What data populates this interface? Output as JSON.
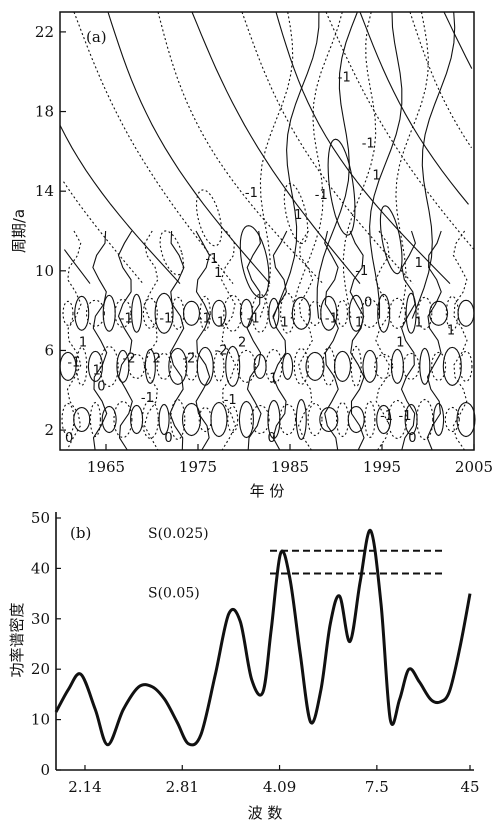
{
  "chart_data": [
    {
      "type": "contour",
      "panel_label": "(a)",
      "xlabel": "年 份",
      "ylabel": "周期/a",
      "xlim": [
        1960,
        2005
      ],
      "ylim": [
        1,
        23
      ],
      "x_ticks": [
        1965,
        1975,
        1985,
        1995,
        2005
      ],
      "y_ticks": [
        2,
        6,
        10,
        14,
        18,
        22
      ],
      "contour_labels": [
        {
          "text": "-1",
          "x": 1976.5,
          "y": 10.6
        },
        {
          "text": "1",
          "x": 1977.2,
          "y": 9.9
        },
        {
          "text": "1",
          "x": 1985.9,
          "y": 12.8
        },
        {
          "text": "-1",
          "x": 1980.8,
          "y": 13.9
        },
        {
          "text": "-1",
          "x": 1988.4,
          "y": 13.8
        },
        {
          "text": "-1",
          "x": 1990.9,
          "y": 19.7
        },
        {
          "text": "-1",
          "x": 1993.5,
          "y": 16.4
        },
        {
          "text": "1",
          "x": 1994.4,
          "y": 14.8
        },
        {
          "text": "-1",
          "x": 1992.8,
          "y": 10.0
        },
        {
          "text": "1",
          "x": 1999.0,
          "y": 10.4
        },
        {
          "text": "-1",
          "x": 1967.2,
          "y": 7.6
        },
        {
          "text": "-1",
          "x": 1971.5,
          "y": 7.6
        },
        {
          "text": "-1",
          "x": 1975.7,
          "y": 7.6
        },
        {
          "text": "1",
          "x": 1977.5,
          "y": 7.4
        },
        {
          "text": "-1",
          "x": 1981.0,
          "y": 7.6
        },
        {
          "text": "1",
          "x": 1984.4,
          "y": 7.4
        },
        {
          "text": "-1",
          "x": 1989.5,
          "y": 7.6
        },
        {
          "text": "1",
          "x": 1992.5,
          "y": 7.4
        },
        {
          "text": "1",
          "x": 1999.0,
          "y": 7.4
        },
        {
          "text": "1",
          "x": 2002.5,
          "y": 7.0
        },
        {
          "text": "1",
          "x": 1962.5,
          "y": 6.4
        },
        {
          "text": "-2",
          "x": 1967.5,
          "y": 5.6
        },
        {
          "text": "2",
          "x": 1970.5,
          "y": 5.6
        },
        {
          "text": "-2",
          "x": 1974.0,
          "y": 5.6
        },
        {
          "text": "-2",
          "x": 1977.5,
          "y": 6.0
        },
        {
          "text": "2",
          "x": 1979.8,
          "y": 6.4
        },
        {
          "text": "1",
          "x": 1997.0,
          "y": 6.4
        },
        {
          "text": "-1",
          "x": 1961.5,
          "y": 5.4
        },
        {
          "text": "1",
          "x": 1964.0,
          "y": 5.0
        },
        {
          "text": "0",
          "x": 1964.5,
          "y": 4.2
        },
        {
          "text": "0",
          "x": 1993.5,
          "y": 8.4
        },
        {
          "text": "-1",
          "x": 1969.5,
          "y": 3.6
        },
        {
          "text": "1",
          "x": 1983.2,
          "y": 4.6
        },
        {
          "text": "-1",
          "x": 1978.5,
          "y": 3.5
        },
        {
          "text": "-1",
          "x": 1995.5,
          "y": 2.7
        },
        {
          "text": "-1",
          "x": 1997.5,
          "y": 2.7
        },
        {
          "text": "0",
          "x": 1961.0,
          "y": 1.6
        },
        {
          "text": "0",
          "x": 1971.8,
          "y": 1.6
        },
        {
          "text": "0",
          "x": 1983.0,
          "y": 1.6
        },
        {
          "text": "0",
          "x": 1998.3,
          "y": 1.6
        }
      ],
      "grid": false
    },
    {
      "type": "line",
      "panel_label": "(b)",
      "xlabel": "波 数",
      "ylabel": "功率谱密度",
      "ylim": [
        0,
        50
      ],
      "y_ticks": [
        0,
        10,
        20,
        30,
        40,
        50
      ],
      "x_tick_labels": [
        "2.14",
        "2.81",
        "4.09",
        "7.5",
        "45"
      ],
      "x_tick_positions": [
        2.8,
        12.2,
        21.6,
        31.0,
        40.0
      ],
      "xlim": [
        0,
        40
      ],
      "x": [
        0,
        1.2,
        2.4,
        3.8,
        5.0,
        6.5,
        8.0,
        9.3,
        10.5,
        11.7,
        12.8,
        14.0,
        15.4,
        16.7,
        17.8,
        18.9,
        20.0,
        20.8,
        21.7,
        22.6,
        23.6,
        24.6,
        25.6,
        26.5,
        27.4,
        28.4,
        29.4,
        30.4,
        31.4,
        32.3,
        33.2,
        34.1,
        35.1,
        36.2,
        37.1,
        38.0,
        39.0,
        40.0
      ],
      "series": [
        {
          "values": [
            11.5,
            16,
            19,
            12,
            5,
            12,
            16.5,
            16.5,
            14,
            9.5,
            5.2,
            7,
            19,
            31,
            29.5,
            18,
            15.5,
            28,
            43,
            38,
            23,
            9.5,
            16,
            29,
            34.5,
            25.5,
            37.5,
            47.5,
            33,
            10,
            14,
            20,
            17.5,
            14,
            13.5,
            15.5,
            24,
            35
          ]
        }
      ],
      "reference_lines": [
        {
          "label": "S(0.025)",
          "y": 43.5
        },
        {
          "label": "S(0.05)",
          "y": 39
        }
      ],
      "grid": false
    }
  ]
}
